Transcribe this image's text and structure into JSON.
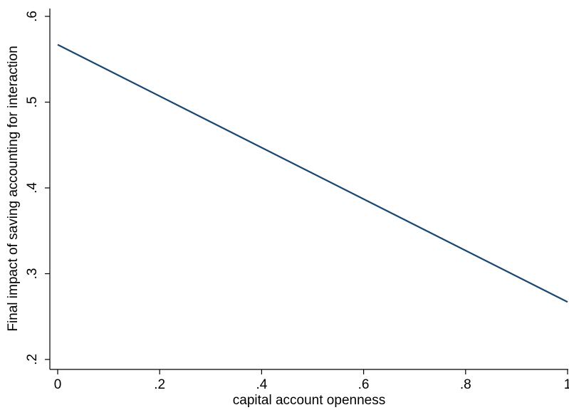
{
  "chart_data": {
    "type": "line",
    "x_label": "capital account openness",
    "y_label": "Final impact of saving accounting for interaction",
    "x": [
      0,
      1
    ],
    "series": [
      {
        "name": "Final impact",
        "color": "#1a476f",
        "values": [
          0.567,
          0.267
        ]
      }
    ],
    "xlim": [
      0,
      1
    ],
    "ylim": [
      0.2,
      0.6
    ],
    "xticks": [
      0,
      {
        "value": 0.2,
        "label": ".2"
      },
      {
        "value": 0.4,
        "label": ".4"
      },
      {
        "value": 0.6,
        "label": ".6"
      },
      {
        "value": 0.8,
        "label": ".8"
      },
      1
    ],
    "yticks": [
      {
        "value": 0.2,
        "label": ".2"
      },
      {
        "value": 0.3,
        "label": ".3"
      },
      {
        "value": 0.4,
        "label": ".4"
      },
      {
        "value": 0.5,
        "label": ".5"
      },
      {
        "value": 0.6,
        "label": ".6"
      }
    ],
    "grid": false
  }
}
